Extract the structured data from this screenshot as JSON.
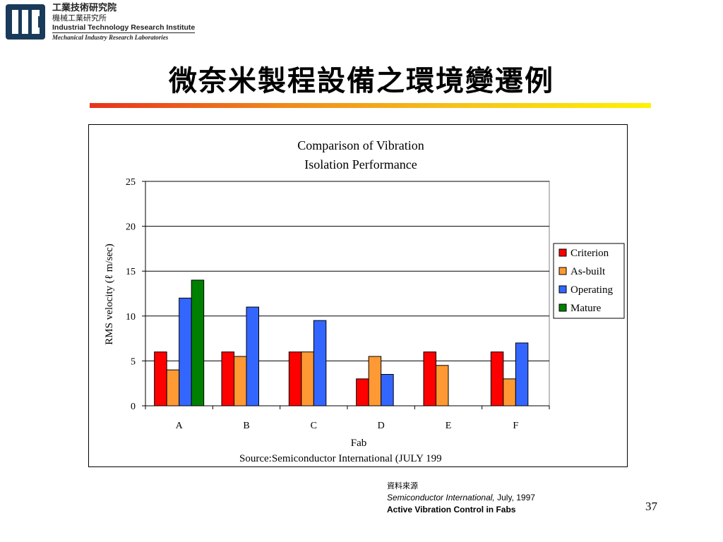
{
  "header": {
    "org_cn": "工業技術研究院",
    "org_sub_cn": "機械工業研究所",
    "org_en": "Industrial Technology Research Institute",
    "org_sub_en": "Mechanical Industry Research Laboratories"
  },
  "slide": {
    "title": "微奈米製程設備之環境變遷例",
    "page_number": "37"
  },
  "source": {
    "label": "資料來源",
    "publication": "Semiconductor International,",
    "date": " July, 1997",
    "article": "Active Vibration Control in Fabs"
  },
  "colors": {
    "criterion": "#ff0000",
    "as_built": "#ff9933",
    "operating": "#3366ff",
    "mature": "#008000",
    "title_bar": [
      "#e8321e",
      "#fff200"
    ],
    "logo": "#1a3a5a"
  },
  "chart_data": {
    "type": "bar",
    "title": "Comparison of Vibration Isolation Performance",
    "title_lines": [
      "Comparison of Vibration",
      "Isolation Performance"
    ],
    "xlabel": "Fab",
    "ylabel": "RMS velocity (ℓ m/sec)",
    "categories": [
      "A",
      "B",
      "C",
      "D",
      "E",
      "F"
    ],
    "ylim": [
      0,
      25
    ],
    "yticks": [
      "0",
      "5",
      "10",
      "15",
      "20",
      "25"
    ],
    "grid": true,
    "legend": "right",
    "footnote": "Source:Semiconductor International (JULY 199",
    "series": [
      {
        "name": "Criterion",
        "color": "#ff0000",
        "values": [
          6,
          6,
          6,
          3,
          6,
          6
        ]
      },
      {
        "name": "As-built",
        "color": "#ff9933",
        "values": [
          4,
          5.5,
          6,
          5.5,
          4.5,
          3
        ]
      },
      {
        "name": "Operating",
        "color": "#3366ff",
        "values": [
          12,
          11,
          9.5,
          3.5,
          null,
          7
        ]
      },
      {
        "name": "Mature",
        "color": "#008000",
        "values": [
          14,
          null,
          null,
          null,
          null,
          null
        ]
      }
    ]
  }
}
